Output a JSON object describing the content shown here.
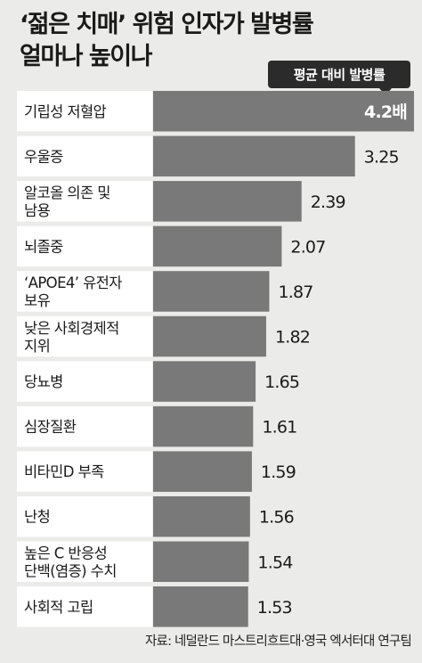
{
  "chart_data": {
    "type": "bar",
    "orientation": "horizontal",
    "title_lines": [
      "‘젊은 치매’ 위험 인자가 발병률",
      "얼마나 높이나"
    ],
    "legend": "평균 대비 발병률",
    "categories": [
      [
        "기립성 저혈압"
      ],
      [
        "우울증"
      ],
      [
        "알코올 의존 및",
        "남용"
      ],
      [
        "뇌졸중"
      ],
      [
        "‘APOE4’ 유전자",
        "보유"
      ],
      [
        "낮은 사회경제적",
        "지위"
      ],
      [
        "당뇨병"
      ],
      [
        "심장질환"
      ],
      [
        "비타민D 부족"
      ],
      [
        "난청"
      ],
      [
        "높은 C 반응성",
        "단백(염증) 수치"
      ],
      [
        "사회적 고립"
      ]
    ],
    "values": [
      4.2,
      3.25,
      2.39,
      2.07,
      1.87,
      1.82,
      1.65,
      1.61,
      1.59,
      1.56,
      1.54,
      1.53
    ],
    "value_labels": [
      "4.2배",
      "3.25",
      "2.39",
      "2.07",
      "1.87",
      "1.82",
      "1.65",
      "1.61",
      "1.59",
      "1.56",
      "1.54",
      "1.53"
    ],
    "colors": {
      "label_cell": "#ffffff",
      "bar": "#797979",
      "value_label": "#1a1a1a",
      "top_value_label": "#ffffff"
    }
  },
  "source": "자료: 네덜란드 마스트리흐트대·영국 엑서터대 연구팀"
}
